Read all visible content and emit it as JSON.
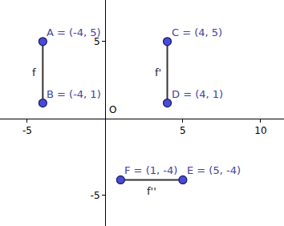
{
  "chart_data": {
    "type": "scatter",
    "points": [
      {
        "name": "A",
        "x": -4,
        "y": 5,
        "label": "A = (-4, 5)"
      },
      {
        "name": "B",
        "x": -4,
        "y": 1,
        "label": "B = (-4, 1)"
      },
      {
        "name": "C",
        "x": 4,
        "y": 5,
        "label": "C = (4, 5)"
      },
      {
        "name": "D",
        "x": 4,
        "y": 1,
        "label": "D = (4, 1)"
      },
      {
        "name": "F",
        "x": 1,
        "y": -4,
        "label": "F = (1, -4)"
      },
      {
        "name": "E",
        "x": 5,
        "y": -4,
        "label": "E = (5, -4)"
      }
    ],
    "segments": [
      {
        "label": "f",
        "from": "A",
        "to": "B"
      },
      {
        "label": "f'",
        "from": "C",
        "to": "D"
      },
      {
        "label": "f''",
        "from": "F",
        "to": "E"
      }
    ],
    "origin_label": "O",
    "xlim": [
      -6.75,
      11.5
    ],
    "ylim": [
      -7,
      7.7
    ],
    "xticks": [
      -5,
      5,
      10
    ],
    "yticks": [
      -5,
      5
    ],
    "grid": false,
    "color": "#4a4ad9"
  }
}
